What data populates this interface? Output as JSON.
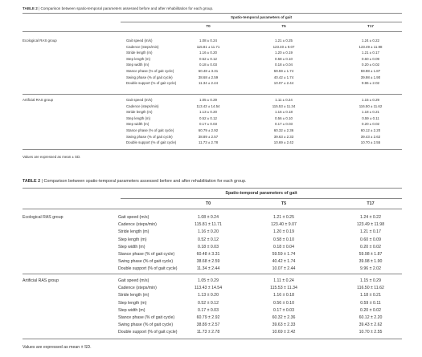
{
  "caption": {
    "label": "TABLE 2",
    "text": " | Comparison between spatio-temporal parameters assessed before and after rehabilitation for each group."
  },
  "header": {
    "spanner": "Spatio-temporal parameters of gait",
    "columns": [
      "T0",
      "T5",
      "T17"
    ]
  },
  "groups": [
    {
      "name": "Ecological RAS group",
      "rows": [
        {
          "param": "Gait speed (m/s)",
          "values": [
            "1.08 ± 0.24",
            "1.21 ± 0.25",
            "1.24 ± 0.22"
          ]
        },
        {
          "param": "Cadence (steps/min)",
          "values": [
            "115.81 ± 11.71",
            "123.40 ± 9.07",
            "123.49 ± 11.98"
          ]
        },
        {
          "param": "Stride length (m)",
          "values": [
            "1.16 ± 0.20",
            "1.20 ± 0.19",
            "1.21 ± 0.17"
          ]
        },
        {
          "param": "Step length (m)",
          "values": [
            "0.52 ± 0.12",
            "0.58 ± 0.10",
            "0.60 ± 0.09"
          ]
        },
        {
          "param": "Step width (m)",
          "values": [
            "0.18 ± 0.03",
            "0.18 ± 0.04",
            "0.20 ± 0.02"
          ]
        },
        {
          "param": "Stance phase (% of gait cycle)",
          "values": [
            "60.48 ± 3.31",
            "59.59 ± 1.74",
            "59.98 ± 1.87"
          ]
        },
        {
          "param": "Swing phase (% of gait cycle)",
          "values": [
            "38.68 ± 2.59",
            "40.42 ± 1.74",
            "39.98 ± 1.90"
          ]
        },
        {
          "param": "Double support (% of gait cycle)",
          "values": [
            "11.34 ± 2.44",
            "10.07 ± 2.44",
            "9.96 ± 2.02"
          ]
        }
      ]
    },
    {
      "name": "Artificial RAS group",
      "rows": [
        {
          "param": "Gait speed (m/s)",
          "values": [
            "1.05 ± 0.29",
            "1.11 ± 0.24",
            "1.15 ± 0.29"
          ]
        },
        {
          "param": "Cadence (steps/min)",
          "values": [
            "113.43 ± 14.54",
            "115.53 ± 11.34",
            "116.50 ± 11.62"
          ]
        },
        {
          "param": "Stride length (m)",
          "values": [
            "1.13 ± 0.20",
            "1.16 ± 0.18",
            "1.18 ± 0.21"
          ]
        },
        {
          "param": "Step length (m)",
          "values": [
            "0.52 ± 0.12",
            "0.56 ± 0.10",
            "0.59 ± 0.11"
          ]
        },
        {
          "param": "Step width (m)",
          "values": [
            "0.17 ± 0.03",
            "0.17 ± 0.03",
            "0.20 ± 0.02"
          ]
        },
        {
          "param": "Stance phase (% of gait cycle)",
          "values": [
            "60.79 ± 2.92",
            "60.32 ± 2.36",
            "60.12 ± 2.20"
          ]
        },
        {
          "param": "Swing phase (% of gait cycle)",
          "values": [
            "38.89 ± 2.57",
            "39.63 ± 2.33",
            "39.43 ± 2.62"
          ]
        },
        {
          "param": "Double support (% of gait cycle)",
          "values": [
            "11.73 ± 2.78",
            "10.69 ± 2.42",
            "10.70 ± 2.55"
          ]
        }
      ]
    }
  ],
  "footnote": "Values are expressed as mean ± SD."
}
